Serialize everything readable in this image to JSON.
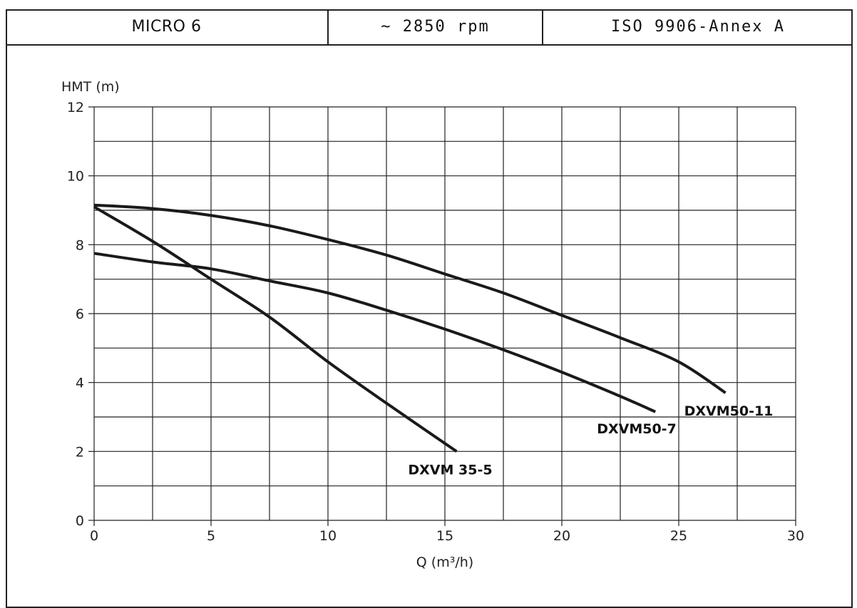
{
  "header": {
    "model": "MICRO 6",
    "speed": "~ 2850 rpm",
    "standard": "ISO 9906-Annex A"
  },
  "chart_data": {
    "type": "line",
    "ylabel": "HMT (m)",
    "xlabel": "Q (m³/h)",
    "xlim": [
      0,
      30
    ],
    "ylim": [
      0,
      12
    ],
    "x_ticks": [
      0,
      5,
      10,
      15,
      20,
      25,
      30
    ],
    "y_ticks": [
      0,
      2,
      4,
      6,
      8,
      10,
      12
    ],
    "x_grid_step": 2.5,
    "y_grid_step": 1,
    "grid": true,
    "series": [
      {
        "name": "DXVM 35-5",
        "x": [
          0,
          2.5,
          5,
          7.5,
          10,
          12.5,
          15.5
        ],
        "y": [
          9.1,
          8.1,
          7.0,
          5.9,
          4.6,
          3.4,
          2.0
        ]
      },
      {
        "name": "DXVM50-7",
        "x": [
          0,
          2.5,
          5,
          7.5,
          10,
          12.5,
          15,
          17.5,
          20,
          22.5,
          24
        ],
        "y": [
          7.75,
          7.5,
          7.3,
          6.95,
          6.6,
          6.1,
          5.55,
          4.95,
          4.3,
          3.6,
          3.15
        ]
      },
      {
        "name": "DXVM50-11",
        "x": [
          0,
          2.5,
          5,
          7.5,
          10,
          12.5,
          15,
          17.5,
          20,
          22.5,
          25,
          27
        ],
        "y": [
          9.15,
          9.05,
          8.85,
          8.55,
          8.15,
          7.7,
          7.15,
          6.6,
          5.95,
          5.3,
          4.6,
          3.7
        ]
      }
    ]
  }
}
